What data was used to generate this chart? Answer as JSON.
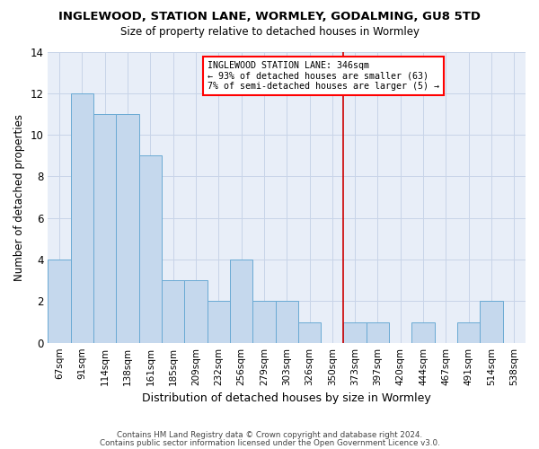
{
  "title1": "INGLEWOOD, STATION LANE, WORMLEY, GODALMING, GU8 5TD",
  "title2": "Size of property relative to detached houses in Wormley",
  "xlabel": "Distribution of detached houses by size in Wormley",
  "ylabel": "Number of detached properties",
  "categories": [
    "67sqm",
    "91sqm",
    "114sqm",
    "138sqm",
    "161sqm",
    "185sqm",
    "209sqm",
    "232sqm",
    "256sqm",
    "279sqm",
    "303sqm",
    "326sqm",
    "350sqm",
    "373sqm",
    "397sqm",
    "420sqm",
    "444sqm",
    "467sqm",
    "491sqm",
    "514sqm",
    "538sqm"
  ],
  "values": [
    4,
    12,
    11,
    11,
    9,
    3,
    3,
    2,
    4,
    2,
    2,
    1,
    0,
    1,
    1,
    0,
    1,
    0,
    1,
    2,
    0
  ],
  "bar_color": "#c5d8ed",
  "bar_edge_color": "#6aaad4",
  "marker_label": "INGLEWOOD STATION LANE: 346sqm",
  "marker_line1": "← 93% of detached houses are smaller (63)",
  "marker_line2": "7% of semi-detached houses are larger (5) →",
  "vline_color": "#cc0000",
  "vline_index": 12.5,
  "ylim": [
    0,
    14
  ],
  "yticks": [
    0,
    2,
    4,
    6,
    8,
    10,
    12,
    14
  ],
  "grid_color": "#c8d4e8",
  "background_color": "#e8eef8",
  "footer1": "Contains HM Land Registry data © Crown copyright and database right 2024.",
  "footer2": "Contains public sector information licensed under the Open Government Licence v3.0."
}
